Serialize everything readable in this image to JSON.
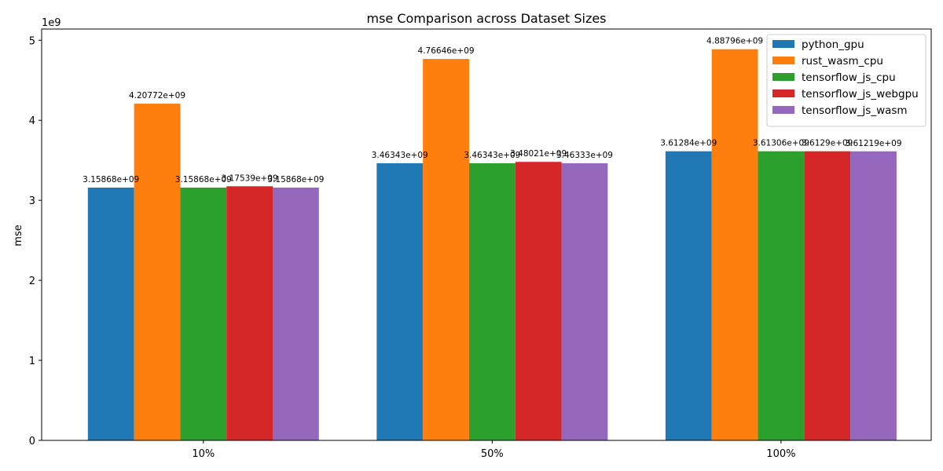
{
  "chart_data": {
    "type": "bar",
    "title": "mse Comparison across Dataset Sizes",
    "xlabel": "",
    "ylabel": "mse",
    "y_multiplier_label": "1e9",
    "categories": [
      "10%",
      "50%",
      "100%"
    ],
    "ylim": [
      0,
      5140000000.0
    ],
    "yticks": [
      0,
      1000000000.0,
      2000000000.0,
      3000000000.0,
      4000000000.0,
      5000000000.0
    ],
    "ytick_labels": [
      "0",
      "1",
      "2",
      "3",
      "4",
      "5"
    ],
    "grid": false,
    "legend_position": "top-right",
    "series": [
      {
        "name": "python_gpu",
        "color": "#1f77b4",
        "values": [
          3158680000.0,
          3463430000.0,
          3612840000.0
        ],
        "labels": [
          "3.15868e+09",
          "3.46343e+09",
          "3.61284e+09"
        ]
      },
      {
        "name": "rust_wasm_cpu",
        "color": "#ff7f0e",
        "values": [
          4207720000.0,
          4766460000.0,
          4887960000.0
        ],
        "labels": [
          "4.20772e+09",
          "4.76646e+09",
          "4.88796e+09"
        ]
      },
      {
        "name": "tensorflow_js_cpu",
        "color": "#2ca02c",
        "values": [
          3158680000.0,
          3463430000.0,
          3613060000.0
        ],
        "labels": [
          "3.15868e+09",
          "3.46343e+09",
          "3.61306e+09"
        ]
      },
      {
        "name": "tensorflow_js_webgpu",
        "color": "#d62728",
        "values": [
          3175390000.0,
          3480210000.0,
          3612900000.0
        ],
        "labels": [
          "3.17539e+09",
          "3.48021e+09",
          "3.6129e+09"
        ]
      },
      {
        "name": "tensorflow_js_wasm",
        "color": "#9467bd",
        "values": [
          3158680000.0,
          3463330000.0,
          3612190000.0
        ],
        "labels": [
          "3.15868e+09",
          "3.46333e+09",
          "3.61219e+09"
        ]
      }
    ]
  }
}
